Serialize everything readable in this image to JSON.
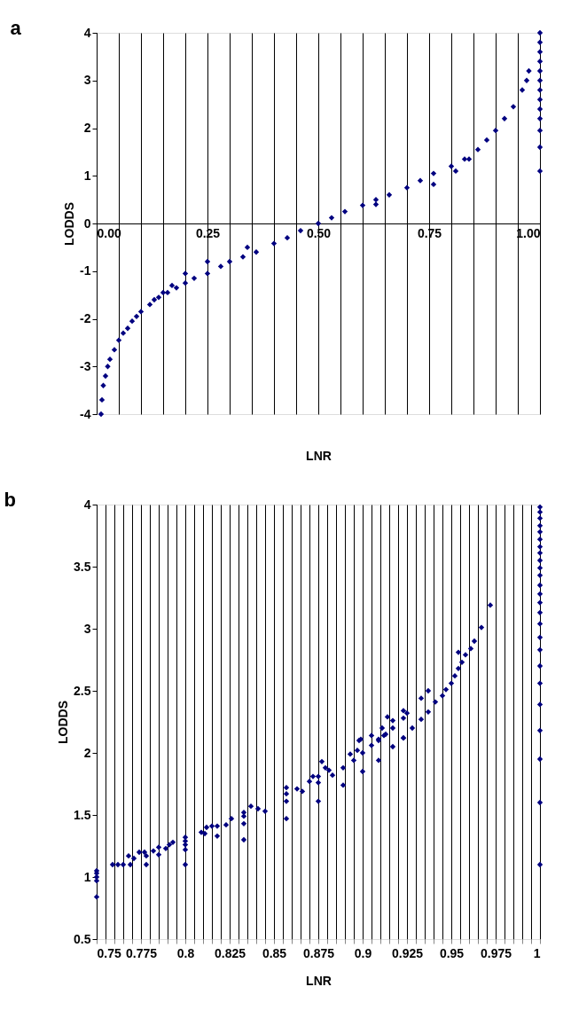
{
  "chart_data": [
    {
      "type": "scatter",
      "title": "a",
      "xlabel": "LNR",
      "ylabel": "LODDS",
      "marker": "diamond",
      "grid": "x",
      "xlim": [
        0,
        1
      ],
      "ylim": [
        -4,
        4
      ],
      "xticks": [
        {
          "value": 0,
          "label": "0.00"
        },
        {
          "value": 0.05,
          "label": null
        },
        {
          "value": 0.1,
          "label": null
        },
        {
          "value": 0.15,
          "label": null
        },
        {
          "value": 0.2,
          "label": null
        },
        0.25,
        {
          "value": 0.3,
          "label": null
        },
        {
          "value": 0.35,
          "label": null
        },
        {
          "value": 0.4,
          "label": null
        },
        {
          "value": 0.45,
          "label": null
        },
        {
          "value": 0.5,
          "label": "0.50"
        },
        {
          "value": 0.55,
          "label": null
        },
        {
          "value": 0.6,
          "label": null
        },
        {
          "value": 0.65,
          "label": null
        },
        {
          "value": 0.7,
          "label": null
        },
        0.75,
        {
          "value": 0.8,
          "label": null
        },
        {
          "value": 0.85,
          "label": null
        },
        {
          "value": 0.9,
          "label": null
        },
        {
          "value": 0.95,
          "label": null
        },
        {
          "value": 1,
          "label": "1.00"
        }
      ],
      "yticks": [
        -4,
        -3,
        -2,
        -1,
        0,
        1,
        2,
        3,
        4
      ],
      "series": [
        {
          "color": "#000080",
          "x": [
            0.01,
            0.012,
            0.015,
            0.02,
            0.025,
            0.03,
            0.04,
            0.05,
            0.06,
            0.07,
            0.08,
            0.09,
            0.1,
            0.12,
            0.14,
            0.16,
            0.18,
            0.2,
            0.22,
            0.25,
            0.28,
            0.3,
            0.33,
            0.36,
            0.4,
            0.43,
            0.46,
            0.5,
            0.53,
            0.56,
            0.6,
            0.63,
            0.66,
            0.7,
            0.73,
            0.76,
            0.8,
            0.83,
            0.86,
            0.88,
            0.9,
            0.92,
            0.94,
            0.96,
            0.97,
            0.975,
            0.25,
            0.2,
            0.17,
            0.15,
            0.13,
            0.34,
            0.63,
            0.76,
            0.81,
            0.84,
            1,
            1,
            1,
            1,
            1,
            1,
            1,
            1,
            1,
            1,
            1,
            1,
            1
          ],
          "values": [
            -4.0,
            -3.7,
            -3.4,
            -3.2,
            -3.0,
            -2.85,
            -2.65,
            -2.45,
            -2.3,
            -2.2,
            -2.05,
            -1.95,
            -1.85,
            -1.7,
            -1.55,
            -1.45,
            -1.35,
            -1.25,
            -1.15,
            -1.05,
            -0.9,
            -0.8,
            -0.7,
            -0.6,
            -0.42,
            -0.3,
            -0.15,
            0.0,
            0.12,
            0.25,
            0.38,
            0.5,
            0.6,
            0.75,
            0.9,
            1.05,
            1.2,
            1.35,
            1.55,
            1.75,
            1.95,
            2.2,
            2.45,
            2.8,
            3.0,
            3.2,
            -0.8,
            -1.05,
            -1.3,
            -1.45,
            -1.6,
            -0.5,
            0.4,
            0.82,
            1.1,
            1.35,
            1.1,
            1.6,
            1.95,
            2.2,
            2.4,
            2.6,
            2.8,
            3.0,
            3.2,
            3.4,
            3.6,
            3.8,
            4.0
          ]
        }
      ]
    },
    {
      "type": "scatter",
      "title": "b",
      "xlabel": "LNR",
      "ylabel": "LODDS",
      "marker": "diamond",
      "grid": "x",
      "xlim": [
        0.75,
        1
      ],
      "ylim": [
        0.5,
        4
      ],
      "xticks": [
        0.75,
        {
          "value": 0.755,
          "label": null
        },
        {
          "value": 0.76,
          "label": null
        },
        {
          "value": 0.765,
          "label": null
        },
        {
          "value": 0.77,
          "label": null
        },
        0.775,
        {
          "value": 0.78,
          "label": null
        },
        {
          "value": 0.785,
          "label": null
        },
        {
          "value": 0.79,
          "label": null
        },
        {
          "value": 0.795,
          "label": null
        },
        0.8,
        {
          "value": 0.805,
          "label": null
        },
        {
          "value": 0.81,
          "label": null
        },
        {
          "value": 0.815,
          "label": null
        },
        {
          "value": 0.82,
          "label": null
        },
        0.825,
        {
          "value": 0.83,
          "label": null
        },
        {
          "value": 0.835,
          "label": null
        },
        {
          "value": 0.84,
          "label": null
        },
        {
          "value": 0.845,
          "label": null
        },
        0.85,
        {
          "value": 0.855,
          "label": null
        },
        {
          "value": 0.86,
          "label": null
        },
        {
          "value": 0.865,
          "label": null
        },
        {
          "value": 0.87,
          "label": null
        },
        0.875,
        {
          "value": 0.88,
          "label": null
        },
        {
          "value": 0.885,
          "label": null
        },
        {
          "value": 0.89,
          "label": null
        },
        {
          "value": 0.895,
          "label": null
        },
        0.9,
        {
          "value": 0.905,
          "label": null
        },
        {
          "value": 0.91,
          "label": null
        },
        {
          "value": 0.915,
          "label": null
        },
        {
          "value": 0.92,
          "label": null
        },
        0.925,
        {
          "value": 0.93,
          "label": null
        },
        {
          "value": 0.935,
          "label": null
        },
        {
          "value": 0.94,
          "label": null
        },
        {
          "value": 0.945,
          "label": null
        },
        0.95,
        {
          "value": 0.955,
          "label": null
        },
        {
          "value": 0.96,
          "label": null
        },
        {
          "value": 0.965,
          "label": null
        },
        {
          "value": 0.97,
          "label": null
        },
        0.975,
        {
          "value": 0.98,
          "label": null
        },
        {
          "value": 0.985,
          "label": null
        },
        {
          "value": 0.99,
          "label": null
        },
        {
          "value": 0.995,
          "label": null
        },
        1
      ],
      "yticks": [
        0.5,
        1,
        1.5,
        2,
        2.5,
        3,
        3.5,
        4
      ],
      "series": [
        {
          "color": "#000080",
          "x": [
            0.75,
            0.75,
            0.75,
            0.75,
            0.75,
            0.759,
            0.762,
            0.765,
            0.768,
            0.769,
            0.771,
            0.774,
            0.777,
            0.778,
            0.778,
            0.782,
            0.785,
            0.785,
            0.789,
            0.791,
            0.793,
            0.8,
            0.8,
            0.8,
            0.8,
            0.8,
            0.809,
            0.811,
            0.812,
            0.815,
            0.818,
            0.818,
            0.823,
            0.826,
            0.833,
            0.833,
            0.833,
            0.833,
            0.837,
            0.841,
            0.845,
            0.857,
            0.857,
            0.857,
            0.857,
            0.863,
            0.866,
            0.87,
            0.872,
            0.875,
            0.875,
            0.875,
            0.877,
            0.879,
            0.881,
            0.883,
            0.889,
            0.889,
            0.893,
            0.895,
            0.897,
            0.898,
            0.899,
            0.9,
            0.9,
            0.905,
            0.905,
            0.909,
            0.909,
            0.909,
            0.911,
            0.912,
            0.913,
            0.914,
            0.917,
            0.917,
            0.917,
            0.923,
            0.923,
            0.923,
            0.923,
            0.925,
            0.928,
            0.933,
            0.933,
            0.937,
            0.937,
            0.941,
            0.945,
            0.947,
            0.95,
            0.952,
            0.954,
            0.954,
            0.956,
            0.958,
            0.961,
            0.963,
            0.967,
            0.972,
            1,
            1,
            1,
            1,
            1,
            1,
            1,
            1,
            1,
            1,
            1,
            1,
            1,
            1,
            1,
            1,
            1,
            1,
            1,
            1,
            1,
            1,
            1,
            1,
            1
          ],
          "values": [
            0.84,
            0.97,
            1.0,
            1.03,
            1.05,
            1.1,
            1.1,
            1.1,
            1.17,
            1.1,
            1.15,
            1.2,
            1.2,
            1.1,
            1.17,
            1.21,
            1.24,
            1.18,
            1.23,
            1.26,
            1.28,
            1.32,
            1.29,
            1.26,
            1.22,
            1.1,
            1.36,
            1.35,
            1.4,
            1.41,
            1.41,
            1.33,
            1.42,
            1.47,
            1.52,
            1.49,
            1.43,
            1.3,
            1.57,
            1.55,
            1.53,
            1.72,
            1.67,
            1.61,
            1.47,
            1.71,
            1.69,
            1.77,
            1.81,
            1.81,
            1.76,
            1.61,
            1.93,
            1.88,
            1.86,
            1.82,
            1.88,
            1.74,
            1.99,
            1.94,
            2.02,
            2.1,
            2.11,
            2.0,
            1.85,
            2.14,
            2.06,
            2.11,
            2.1,
            1.94,
            2.2,
            2.14,
            2.15,
            2.29,
            2.05,
            2.26,
            2.2,
            2.12,
            2.34,
            2.28,
            2.12,
            2.32,
            2.2,
            2.44,
            2.27,
            2.5,
            2.33,
            2.41,
            2.46,
            2.51,
            2.56,
            2.62,
            2.81,
            2.68,
            2.73,
            2.79,
            2.84,
            2.9,
            3.01,
            3.19,
            1.1,
            1.6,
            1.95,
            2.18,
            2.39,
            2.56,
            2.7,
            2.83,
            2.93,
            3.04,
            3.13,
            3.21,
            3.28,
            3.35,
            3.43,
            3.49,
            3.55,
            3.61,
            3.66,
            3.72,
            3.78,
            3.83,
            3.89,
            3.94,
            3.98
          ]
        }
      ]
    }
  ]
}
